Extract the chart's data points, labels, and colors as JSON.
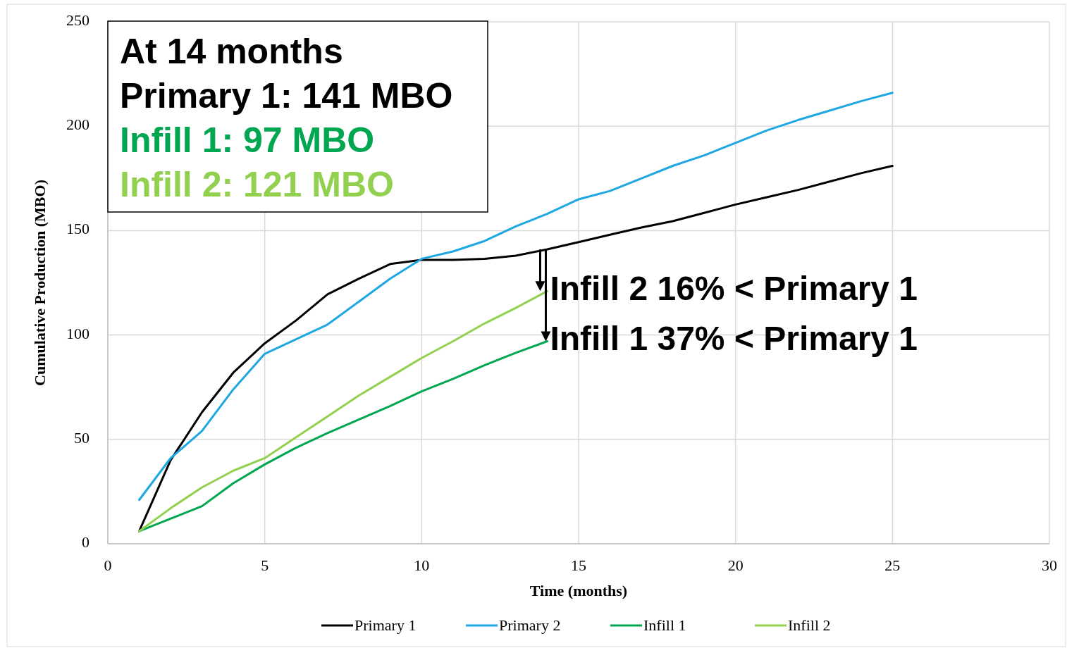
{
  "chart_data": {
    "type": "line",
    "xlabel": "Time (months)",
    "ylabel": "Cumulative Production (MBO)",
    "xlim": [
      0,
      30
    ],
    "xticks": [
      0,
      5,
      10,
      15,
      20,
      25,
      30
    ],
    "ylim": [
      0,
      250
    ],
    "yticks": [
      0,
      50,
      100,
      150,
      200,
      250
    ],
    "grid": true,
    "legend": "bottom",
    "marker": "none",
    "line_style": "solid",
    "series": [
      {
        "name": "Primary 1",
        "color": "#000000",
        "x": [
          1,
          2,
          3,
          4,
          5,
          6,
          7,
          8,
          9,
          10,
          11,
          12,
          13,
          14,
          15,
          16,
          17,
          18,
          19,
          20,
          21,
          22,
          23,
          24,
          25
        ],
        "values": [
          6,
          40,
          63,
          82,
          96,
          107,
          119.5,
          127,
          134,
          136,
          136,
          136.5,
          138,
          141,
          144.5,
          148,
          151.5,
          154.5,
          158.5,
          162.5,
          166,
          169.5,
          173.5,
          177.5,
          181
        ]
      },
      {
        "name": "Primary 2",
        "color": "#1ea7e1",
        "x": [
          1,
          2,
          3,
          4,
          5,
          6,
          7,
          8,
          9,
          10,
          11,
          12,
          13,
          14,
          15,
          16,
          17,
          18,
          19,
          20,
          21,
          22,
          23,
          24,
          25
        ],
        "values": [
          21,
          41,
          54,
          74,
          91,
          98,
          105,
          116,
          127,
          136.5,
          140,
          145,
          152,
          158,
          165,
          169,
          175,
          181,
          186,
          192,
          198,
          203,
          207.5,
          212,
          216
        ]
      },
      {
        "name": "Infill 1",
        "color": "#00a650",
        "x": [
          1,
          2,
          3,
          4,
          5,
          6,
          7,
          8,
          9,
          10,
          11,
          12,
          13,
          14
        ],
        "values": [
          6,
          12,
          18,
          29,
          38,
          46,
          53,
          59.5,
          66,
          73,
          79,
          85.5,
          91.5,
          97
        ]
      },
      {
        "name": "Infill 2",
        "color": "#92d050",
        "x": [
          1,
          2,
          3,
          4,
          5,
          6,
          7,
          8,
          9,
          10,
          11,
          12,
          13,
          14
        ],
        "values": [
          6,
          17,
          27,
          35,
          41,
          51,
          61,
          71,
          80,
          89,
          97,
          105.5,
          113,
          121
        ]
      }
    ],
    "annotations": [
      "At 14 months",
      "Primary 1: 141 MBO",
      "Infill 1: 97 MBO",
      "Infill 2: 121 MBO",
      {
        "text": "Infill 2 16% < Primary 1",
        "x": 14,
        "y": 121
      },
      {
        "text": "Infill 1 37% < Primary 1",
        "x": 14,
        "y": 97
      }
    ]
  }
}
